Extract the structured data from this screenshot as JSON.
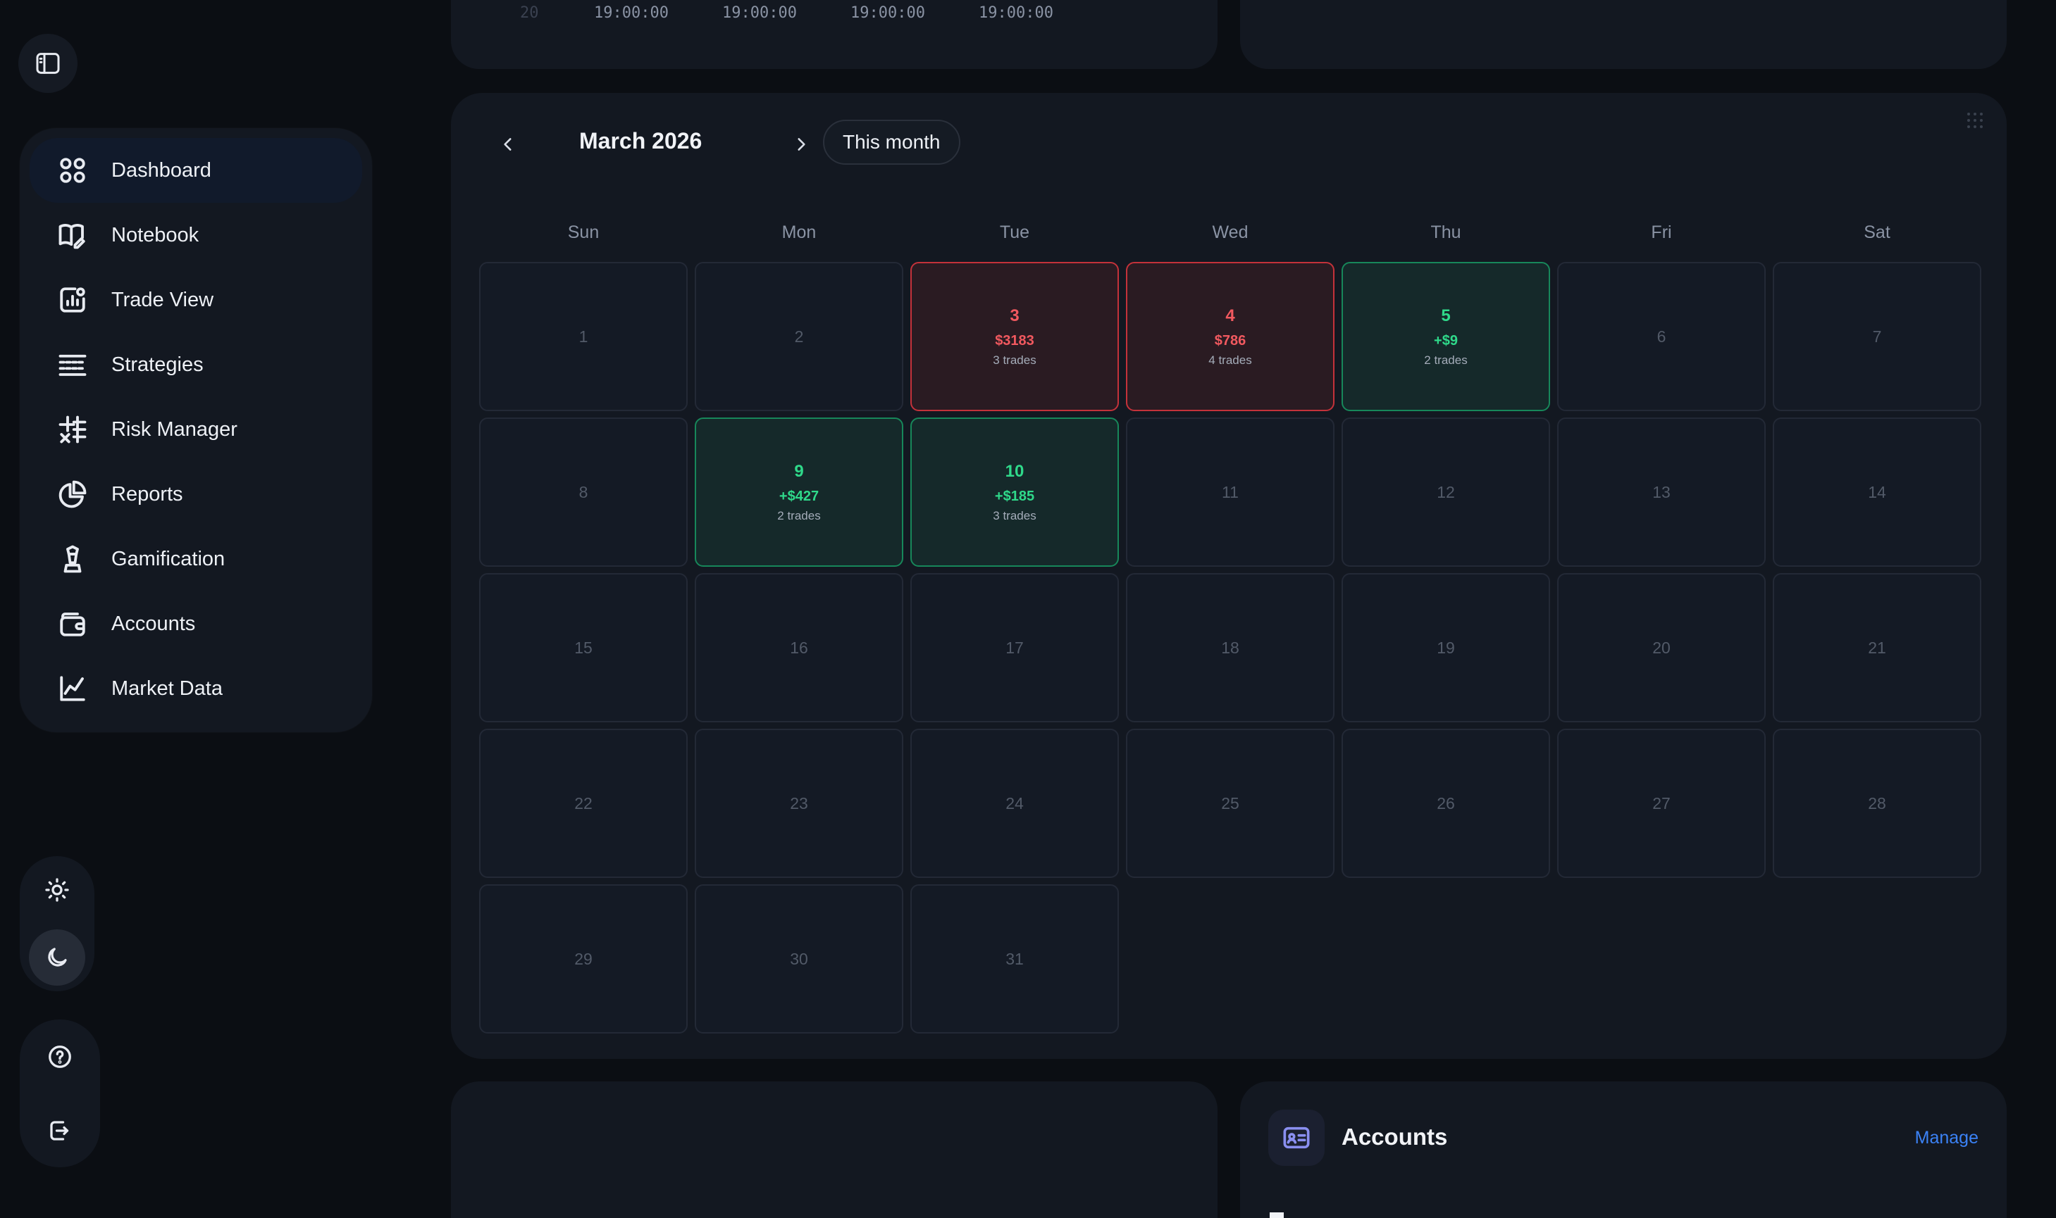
{
  "sidebar": {
    "items": [
      {
        "label": "Dashboard",
        "icon": "dashboard-icon",
        "active": true
      },
      {
        "label": "Notebook",
        "icon": "notebook-icon"
      },
      {
        "label": "Trade View",
        "icon": "trade-view-icon"
      },
      {
        "label": "Strategies",
        "icon": "strategies-icon"
      },
      {
        "label": "Risk Manager",
        "icon": "risk-manager-icon"
      },
      {
        "label": "Reports",
        "icon": "reports-icon"
      },
      {
        "label": "Gamification",
        "icon": "gamification-icon"
      },
      {
        "label": "Accounts",
        "icon": "accounts-icon"
      },
      {
        "label": "Market Data",
        "icon": "market-data-icon"
      }
    ],
    "theme": {
      "active": "dark"
    }
  },
  "top_card": {
    "times": [
      "19:00:00",
      "19:00:00",
      "19:00:00",
      "19:00:00"
    ],
    "faded_label": "20"
  },
  "calendar": {
    "month_title": "March 2026",
    "this_month_label": "This month",
    "weekdays": [
      "Sun",
      "Mon",
      "Tue",
      "Wed",
      "Thu",
      "Fri",
      "Sat"
    ],
    "days": [
      {
        "n": "1"
      },
      {
        "n": "2"
      },
      {
        "n": "3",
        "pnl": "$3183",
        "trades": "3 trades",
        "status": "loss"
      },
      {
        "n": "4",
        "pnl": "$786",
        "trades": "4 trades",
        "status": "loss"
      },
      {
        "n": "5",
        "pnl": "+$9",
        "trades": "2 trades",
        "status": "win"
      },
      {
        "n": "6"
      },
      {
        "n": "7"
      },
      {
        "n": "8"
      },
      {
        "n": "9",
        "pnl": "+$427",
        "trades": "2 trades",
        "status": "win"
      },
      {
        "n": "10",
        "pnl": "+$185",
        "trades": "3 trades",
        "status": "win"
      },
      {
        "n": "11"
      },
      {
        "n": "12"
      },
      {
        "n": "13"
      },
      {
        "n": "14"
      },
      {
        "n": "15"
      },
      {
        "n": "16"
      },
      {
        "n": "17"
      },
      {
        "n": "18"
      },
      {
        "n": "19"
      },
      {
        "n": "20"
      },
      {
        "n": "21"
      },
      {
        "n": "22"
      },
      {
        "n": "23"
      },
      {
        "n": "24"
      },
      {
        "n": "25"
      },
      {
        "n": "26"
      },
      {
        "n": "27"
      },
      {
        "n": "28"
      },
      {
        "n": "29"
      },
      {
        "n": "30"
      },
      {
        "n": "31"
      }
    ]
  },
  "accounts_card": {
    "title": "Accounts",
    "manage_label": "Manage"
  },
  "colors": {
    "loss": "#f1595f",
    "win": "#2fd98a",
    "link": "#3b82f6"
  }
}
